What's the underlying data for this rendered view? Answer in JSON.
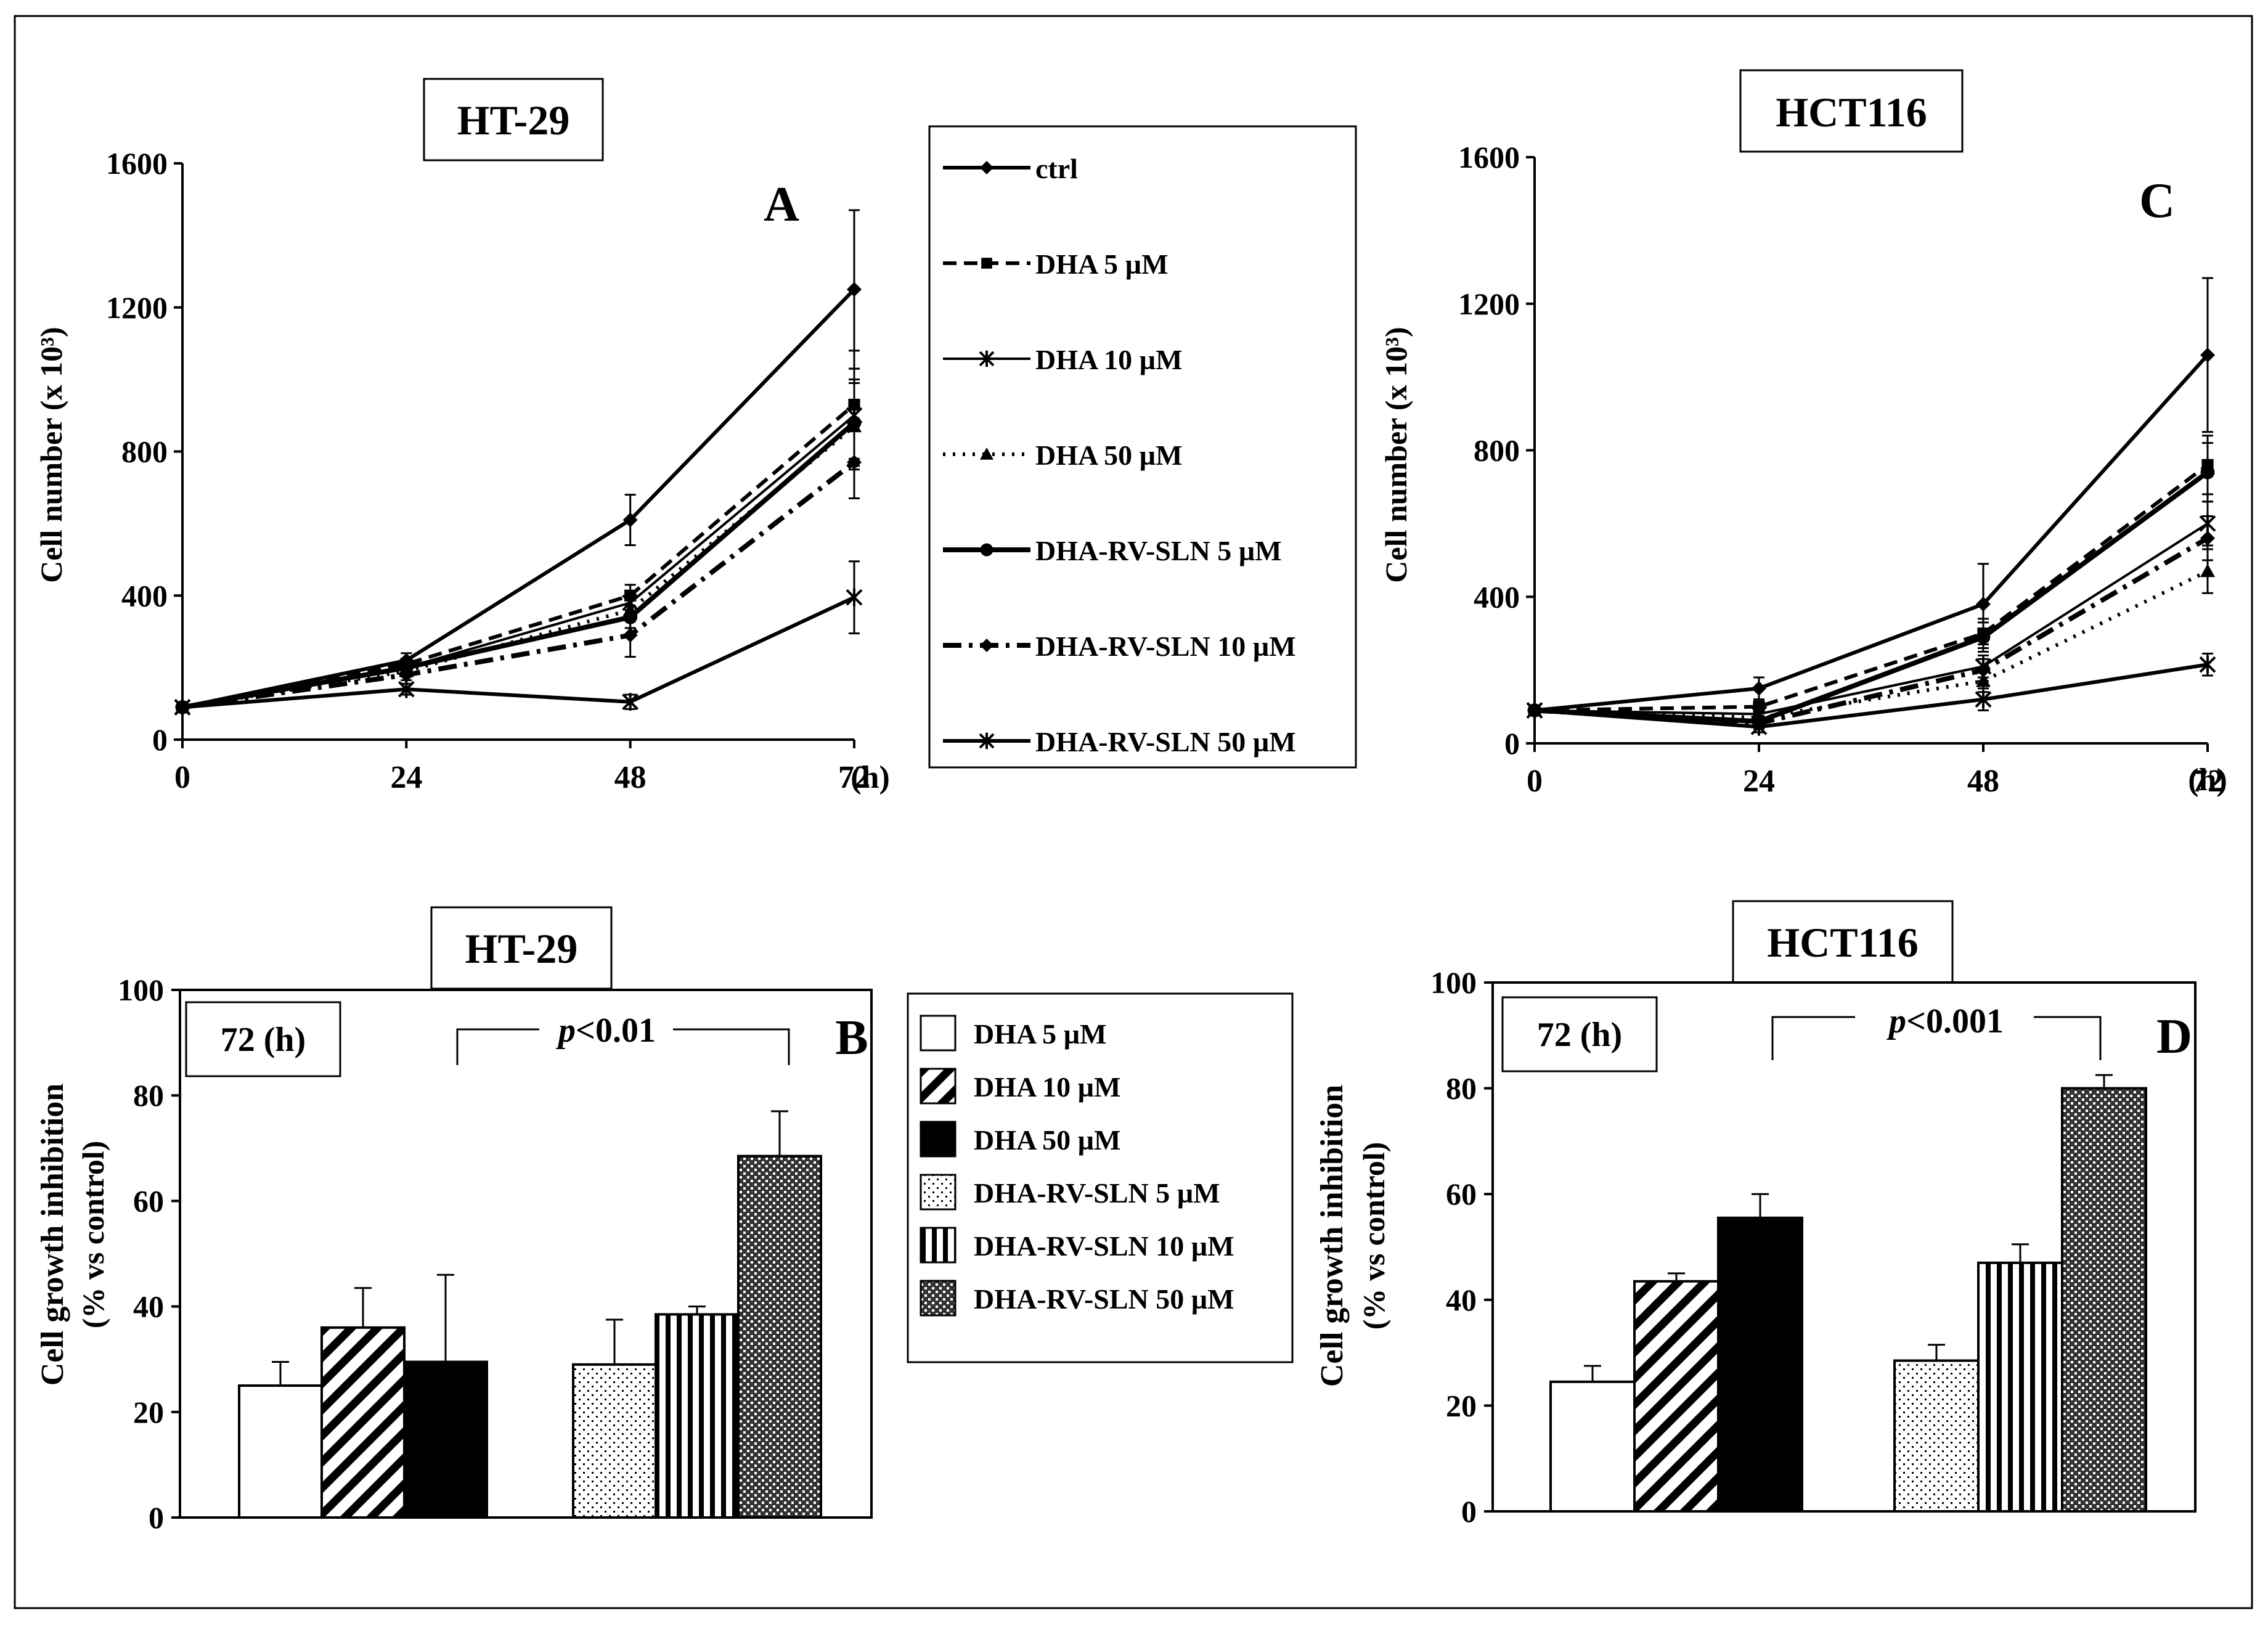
{
  "colors": {
    "ink": "#000000",
    "paper": "#ffffff"
  },
  "legend_top": {
    "entries": [
      {
        "label": "ctrl",
        "marker": "diamond"
      },
      {
        "label": "DHA 5 µM",
        "marker": "square"
      },
      {
        "label": "DHA 10 µM",
        "marker": "star"
      },
      {
        "label": "DHA 50 µM",
        "marker": "triangle"
      },
      {
        "label": "DHA-RV-SLN 5 µM",
        "marker": "circle"
      },
      {
        "label": "DHA-RV-SLN 10 µM",
        "marker": "diamond"
      },
      {
        "label": "DHA-RV-SLN 50 µM",
        "marker": "star"
      }
    ]
  },
  "legend_bottom": {
    "entries": [
      {
        "label": "DHA 5 µM",
        "pattern": "empty"
      },
      {
        "label": "DHA 10 µM",
        "pattern": "diag"
      },
      {
        "label": "DHA 50 µM",
        "pattern": "solid"
      },
      {
        "label": "DHA-RV-SLN 5 µM",
        "pattern": "dots"
      },
      {
        "label": "DHA-RV-SLN 10  µM",
        "pattern": "vlines"
      },
      {
        "label": "DHA-RV-SLN 50  µM",
        "pattern": "check"
      }
    ]
  },
  "chart_data": [
    {
      "id": "A",
      "type": "line",
      "title": "HT-29",
      "panel_letter": "A",
      "xlabel": "(h)",
      "ylabel": "Cell number (x 10³)",
      "x": [
        0,
        24,
        48,
        72
      ],
      "xticks": [
        "0",
        "24",
        "48",
        "72"
      ],
      "yticks": [
        "0",
        "400",
        "800",
        "1200",
        "1600"
      ],
      "ylim": [
        0,
        1600
      ],
      "series": [
        {
          "name": "ctrl",
          "values": [
            90,
            220,
            610,
            1250
          ],
          "err": [
            0,
            20,
            70,
            220
          ],
          "style": "solid",
          "marker": "diamond",
          "width": 6
        },
        {
          "name": "DHA 5 µM",
          "values": [
            90,
            210,
            400,
            930
          ],
          "err": [
            0,
            15,
            30,
            150
          ],
          "style": "dashed",
          "marker": "square",
          "width": 6
        },
        {
          "name": "DHA 10 µM",
          "values": [
            90,
            200,
            380,
            900
          ],
          "err": [
            0,
            15,
            30,
            130
          ],
          "style": "solid",
          "marker": "star",
          "width": 4
        },
        {
          "name": "DHA 50 µM",
          "values": [
            90,
            190,
            360,
            870
          ],
          "err": [
            0,
            15,
            30,
            120
          ],
          "style": "dotted",
          "marker": "triangle",
          "width": 6
        },
        {
          "name": "DHA-RV-SLN 5 µM",
          "values": [
            90,
            200,
            340,
            880
          ],
          "err": [
            0,
            15,
            30,
            120
          ],
          "style": "solid",
          "marker": "circle",
          "width": 8
        },
        {
          "name": "DHA-RV-SLN 10 µM",
          "values": [
            90,
            180,
            290,
            770
          ],
          "err": [
            0,
            15,
            60,
            100
          ],
          "style": "dashdot",
          "marker": "diamond",
          "width": 8
        },
        {
          "name": "DHA-RV-SLN 50 µM",
          "values": [
            90,
            140,
            105,
            395
          ],
          "err": [
            0,
            15,
            20,
            100
          ],
          "style": "solid",
          "marker": "star",
          "width": 6
        }
      ]
    },
    {
      "id": "C",
      "type": "line",
      "title": "HCT116",
      "panel_letter": "C",
      "xlabel": "(h)",
      "ylabel": "Cell number (x 10³)",
      "x": [
        0,
        24,
        48,
        72
      ],
      "xticks": [
        "0",
        "24",
        "48",
        "72"
      ],
      "yticks": [
        "0",
        "400",
        "800",
        "1200",
        "1600"
      ],
      "ylim": [
        0,
        1600
      ],
      "series": [
        {
          "name": "ctrl",
          "values": [
            90,
            150,
            380,
            1060
          ],
          "err": [
            0,
            30,
            110,
            210
          ],
          "style": "solid",
          "marker": "diamond",
          "width": 6
        },
        {
          "name": "DHA 5 µM",
          "values": [
            90,
            100,
            300,
            760
          ],
          "err": [
            0,
            15,
            40,
            80
          ],
          "style": "dashed",
          "marker": "square",
          "width": 6
        },
        {
          "name": "DHA 10 µM",
          "values": [
            90,
            80,
            210,
            600
          ],
          "err": [
            0,
            15,
            30,
            60
          ],
          "style": "solid",
          "marker": "star",
          "width": 4
        },
        {
          "name": "DHA 50 µM",
          "values": [
            90,
            70,
            170,
            470
          ],
          "err": [
            0,
            15,
            30,
            60
          ],
          "style": "dotted",
          "marker": "triangle",
          "width": 6
        },
        {
          "name": "DHA-RV-SLN 5 µM",
          "values": [
            90,
            60,
            290,
            740
          ],
          "err": [
            0,
            15,
            40,
            80
          ],
          "style": "solid",
          "marker": "circle",
          "width": 8
        },
        {
          "name": "DHA-RV-SLN 10 µM",
          "values": [
            90,
            55,
            200,
            560
          ],
          "err": [
            0,
            15,
            30,
            60
          ],
          "style": "dashdot",
          "marker": "diamond",
          "width": 8
        },
        {
          "name": "DHA-RV-SLN 50 µM",
          "values": [
            90,
            45,
            120,
            215
          ],
          "err": [
            0,
            15,
            30,
            30
          ],
          "style": "solid",
          "marker": "star",
          "width": 6
        }
      ]
    },
    {
      "id": "B",
      "type": "bar",
      "title": "HT-29",
      "panel_letter": "B",
      "time_label": "72 (h)",
      "p_prefix": "p",
      "p_suffix": "<0.01",
      "ylabel": "Cell growth inhibition",
      "ylabel2": "(% vs control)",
      "yticks": [
        "0",
        "20",
        "40",
        "60",
        "80",
        "100"
      ],
      "ylim": [
        0,
        100
      ],
      "categories": [
        "DHA 5 µM",
        "DHA 10 µM",
        "DHA 50 µM",
        "DHA-RV-SLN 5 µM",
        "DHA-RV-SLN 10 µM",
        "DHA-RV-SLN 50 µM"
      ],
      "values": [
        25,
        36,
        29.5,
        29,
        38.5,
        68.5
      ],
      "errors": [
        4.5,
        7.5,
        16.5,
        8.5,
        1.5,
        8.5
      ],
      "patterns": [
        "empty",
        "diag",
        "solid",
        "dots",
        "vlines",
        "check"
      ]
    },
    {
      "id": "D",
      "type": "bar",
      "title": "HCT116",
      "panel_letter": "D",
      "time_label": "72 (h)",
      "p_prefix": "p",
      "p_suffix": "<0.001",
      "ylabel": "Cell growth inhibition",
      "ylabel2": "(% vs control)",
      "yticks": [
        "0",
        "20",
        "40",
        "60",
        "80",
        "100"
      ],
      "ylim": [
        0,
        100
      ],
      "categories": [
        "DHA 5 µM",
        "DHA 10 µM",
        "DHA 50 µM",
        "DHA-RV-SLN 5 µM",
        "DHA-RV-SLN 10 µM",
        "DHA-RV-SLN 50 µM"
      ],
      "values": [
        24.5,
        43.5,
        55.5,
        28.5,
        47,
        80
      ],
      "errors": [
        3,
        1.5,
        4.5,
        3,
        3.5,
        2.5
      ],
      "patterns": [
        "empty",
        "diag",
        "solid",
        "dots",
        "vlines",
        "check"
      ]
    }
  ]
}
